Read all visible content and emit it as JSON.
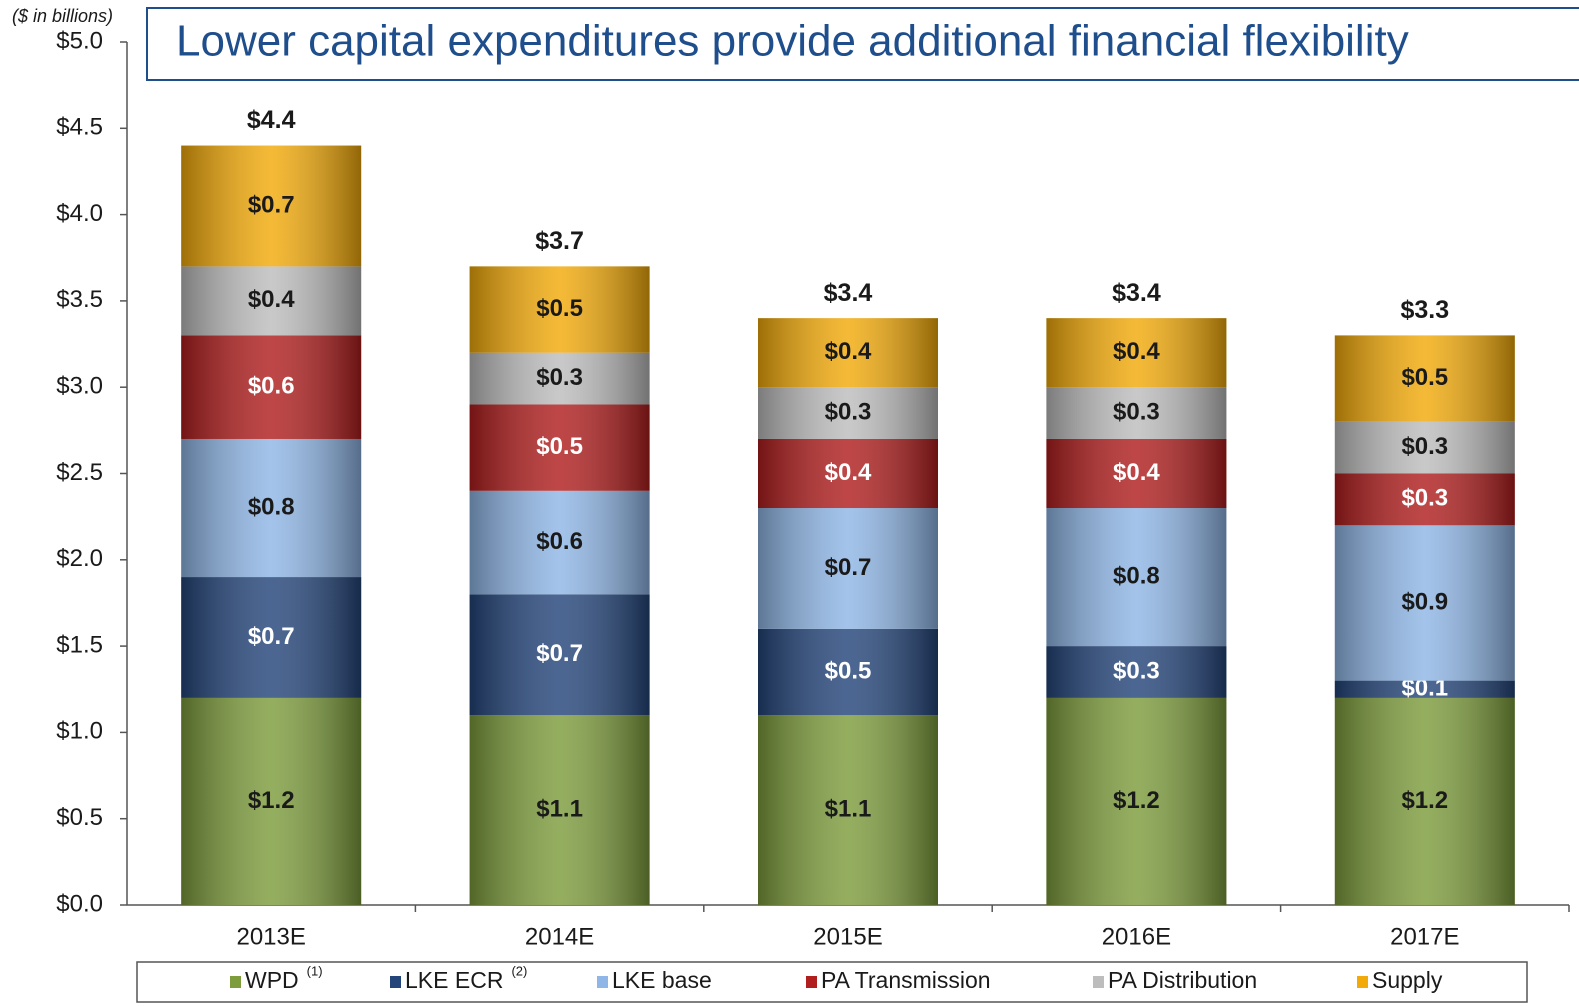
{
  "chart_data": {
    "type": "stacked_bar",
    "title": "Lower capital expenditures provide additional financial flexibility",
    "y_label": "($ in billions)",
    "categories": [
      "2013E",
      "2014E",
      "2015E",
      "2016E",
      "2017E"
    ],
    "series": [
      {
        "name": "WPD",
        "note": "(1)",
        "color": "#7d9c3c",
        "label_color": "#1a1a1a",
        "values": [
          1.2,
          1.1,
          1.1,
          1.2,
          1.2
        ],
        "value_labels": [
          "$1.2",
          "$1.1",
          "$1.1",
          "$1.2",
          "$1.2"
        ]
      },
      {
        "name": "LKE ECR",
        "note": "(2)",
        "color": "#24457a",
        "label_color": "#ffffff",
        "values": [
          0.7,
          0.7,
          0.5,
          0.3,
          0.1
        ],
        "value_labels": [
          "$0.7",
          "$0.7",
          "$0.5",
          "$0.3",
          "$0.1"
        ]
      },
      {
        "name": "LKE base",
        "color": "#8fb6e6",
        "label_color": "#1a1a1a",
        "values": [
          0.8,
          0.6,
          0.7,
          0.8,
          0.9
        ],
        "value_labels": [
          "$0.8",
          "$0.6",
          "$0.7",
          "$0.8",
          "$0.9"
        ]
      },
      {
        "name": "PA Transmission",
        "color": "#b01e1e",
        "label_color": "#ffffff",
        "values": [
          0.6,
          0.5,
          0.4,
          0.4,
          0.3
        ],
        "value_labels": [
          "$0.6",
          "$0.5",
          "$0.4",
          "$0.4",
          "$0.3"
        ]
      },
      {
        "name": "PA Distribution",
        "color": "#bdbdbd",
        "label_color": "#1a1a1a",
        "values": [
          0.4,
          0.3,
          0.3,
          0.3,
          0.3
        ],
        "value_labels": [
          "$0.4",
          "$0.3",
          "$0.3",
          "$0.3",
          "$0.3"
        ]
      },
      {
        "name": "Supply",
        "color": "#f2aa0a",
        "label_color": "#1a1a1a",
        "values": [
          0.7,
          0.5,
          0.4,
          0.4,
          0.5
        ],
        "value_labels": [
          "$0.7",
          "$0.5",
          "$0.4",
          "$0.4",
          "$0.5"
        ]
      }
    ],
    "totals": {
      "values": [
        4.4,
        3.7,
        3.4,
        3.4,
        3.3
      ],
      "value_labels": [
        "$4.4",
        "$3.7",
        "$3.4",
        "$3.4",
        "$3.3"
      ]
    },
    "ylim": [
      0,
      5
    ],
    "yticks": [
      {
        "value": 0,
        "label": "$0.0"
      },
      {
        "value": 0.5,
        "label": "$0.5"
      },
      {
        "value": 1,
        "label": "$1.0"
      },
      {
        "value": 1.5,
        "label": "$1.5"
      },
      {
        "value": 2,
        "label": "$2.0"
      },
      {
        "value": 2.5,
        "label": "$2.5"
      },
      {
        "value": 3,
        "label": "$3.0"
      },
      {
        "value": 3.5,
        "label": "$3.5"
      },
      {
        "value": 4,
        "label": "$4.0"
      },
      {
        "value": 4.5,
        "label": "$4.5"
      },
      {
        "value": 5,
        "label": "$5.0"
      }
    ],
    "legend": "bottom"
  }
}
